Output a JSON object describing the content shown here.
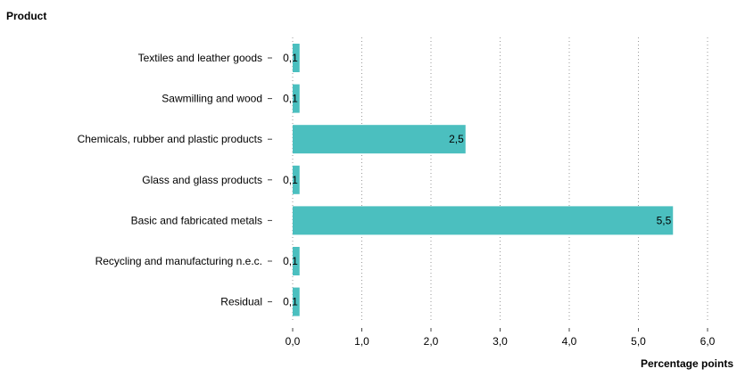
{
  "chart_data": {
    "type": "bar",
    "orientation": "horizontal",
    "categories": [
      "Textiles and leather goods",
      "Sawmilling and wood",
      "Chemicals, rubber and plastic products",
      "Glass and glass products",
      "Basic and fabricated metals",
      "Recycling and manufacturing n.e.c.",
      "Residual"
    ],
    "values": [
      0.1,
      0.1,
      2.5,
      0.1,
      5.5,
      0.1,
      0.1
    ],
    "value_labels": [
      "0,1",
      "0,1",
      "2,5",
      "0,1",
      "5,5",
      "0,1",
      "0,1"
    ],
    "title": "",
    "ylabel": "Product",
    "xlabel": "Percentage points",
    "xlim": [
      0,
      6
    ],
    "xticks": [
      0,
      1,
      2,
      3,
      4,
      5,
      6
    ],
    "xtick_labels": [
      "0,0",
      "1,0",
      "2,0",
      "3,0",
      "4,0",
      "5,0",
      "6,0"
    ],
    "grid": "vertical dotted",
    "legend": "none",
    "bar_color": "#4bbfbf"
  }
}
